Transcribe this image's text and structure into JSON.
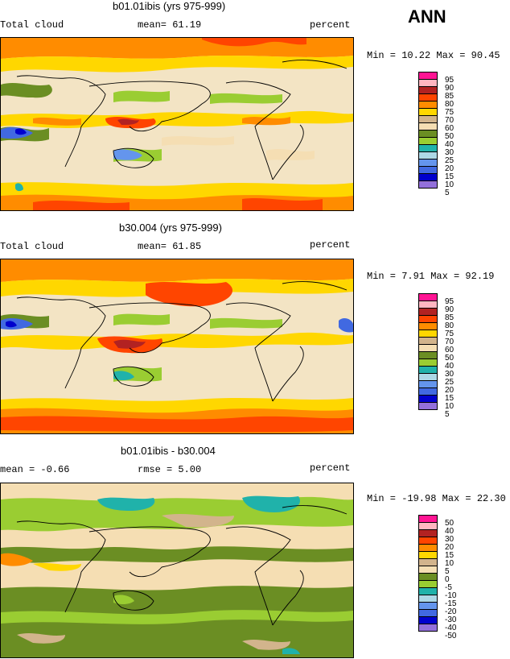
{
  "season": "ANN",
  "panels": [
    {
      "title": "b01.01ibis (yrs 975-999)",
      "left_label": "Total cloud",
      "center_label": "mean=  61.19",
      "right_label": "percent",
      "minmax": "Min =   10.22 Max =   90.45",
      "colorbar": {
        "labels": [
          "95",
          "90",
          "85",
          "80",
          "75",
          "70",
          "60",
          "50",
          "40",
          "30",
          "25",
          "20",
          "15",
          "10",
          "5"
        ],
        "colors": [
          "#ff1493",
          "#ffb6c1",
          "#b22222",
          "#ff4500",
          "#ff8c00",
          "#ffd700",
          "#d2b48c",
          "#f5deb3",
          "#6b8e23",
          "#9acd32",
          "#20b2aa",
          "#add8e6",
          "#6495ed",
          "#4169e1",
          "#0000cd",
          "#9370db"
        ]
      }
    },
    {
      "title": "b30.004 (yrs 975-999)",
      "left_label": "Total cloud",
      "center_label": "mean=  61.85",
      "right_label": "percent",
      "minmax": "Min =   7.91 Max =   92.19",
      "colorbar": {
        "labels": [
          "95",
          "90",
          "85",
          "80",
          "75",
          "70",
          "60",
          "50",
          "40",
          "30",
          "25",
          "20",
          "15",
          "10",
          "5"
        ],
        "colors": [
          "#ff1493",
          "#ffb6c1",
          "#b22222",
          "#ff4500",
          "#ff8c00",
          "#ffd700",
          "#d2b48c",
          "#f5deb3",
          "#6b8e23",
          "#9acd32",
          "#20b2aa",
          "#add8e6",
          "#6495ed",
          "#4169e1",
          "#0000cd",
          "#9370db"
        ]
      }
    },
    {
      "title": "b01.01ibis - b30.004",
      "left_label": "mean =  -0.66",
      "center_label": "rmse =   5.00",
      "right_label": "percent",
      "minmax": "Min = -19.98 Max =  22.30",
      "colorbar": {
        "labels": [
          "50",
          "40",
          "30",
          "20",
          "15",
          "10",
          "5",
          "0",
          "-5",
          "-10",
          "-15",
          "-20",
          "-30",
          "-40",
          "-50"
        ],
        "colors": [
          "#ff1493",
          "#ffb6c1",
          "#b22222",
          "#ff4500",
          "#ff8c00",
          "#ffd700",
          "#d2b48c",
          "#f5deb3",
          "#6b8e23",
          "#9acd32",
          "#20b2aa",
          "#add8e6",
          "#6495ed",
          "#4169e1",
          "#0000cd",
          "#9370db"
        ]
      }
    }
  ],
  "chart_data": [
    {
      "type": "heatmap",
      "title": "b01.01ibis (yrs 975-999)",
      "variable": "Total cloud",
      "units": "percent",
      "mean": 61.19,
      "min": 10.22,
      "max": 90.45,
      "contour_levels": [
        5,
        10,
        15,
        20,
        25,
        30,
        40,
        50,
        60,
        70,
        75,
        80,
        85,
        90,
        95
      ]
    },
    {
      "type": "heatmap",
      "title": "b30.004 (yrs 975-999)",
      "variable": "Total cloud",
      "units": "percent",
      "mean": 61.85,
      "min": 7.91,
      "max": 92.19,
      "contour_levels": [
        5,
        10,
        15,
        20,
        25,
        30,
        40,
        50,
        60,
        70,
        75,
        80,
        85,
        90,
        95
      ]
    },
    {
      "type": "heatmap",
      "title": "b01.01ibis - b30.004",
      "units": "percent",
      "mean": -0.66,
      "rmse": 5.0,
      "min": -19.98,
      "max": 22.3,
      "contour_levels": [
        -50,
        -40,
        -30,
        -20,
        -15,
        -10,
        -5,
        0,
        5,
        10,
        15,
        20,
        30,
        40,
        50
      ]
    }
  ]
}
